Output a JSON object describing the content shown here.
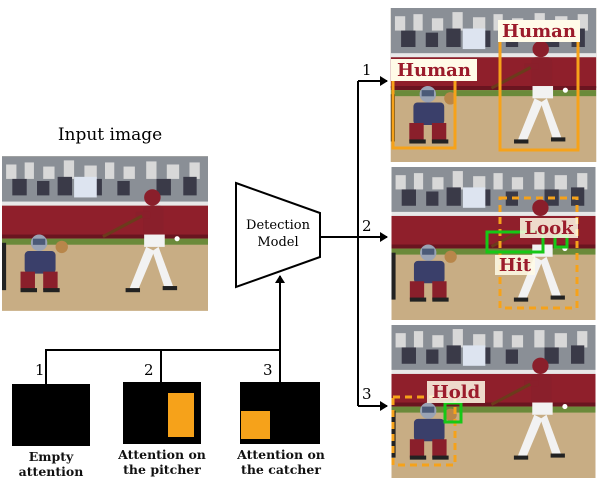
{
  "input": {
    "title": "Input image"
  },
  "model": {
    "line1": "Detection",
    "line2": "Model"
  },
  "branches": {
    "b1": "1",
    "b2": "2",
    "b3": "3"
  },
  "outputs": {
    "o1": {
      "labels": [
        "Human",
        "Human"
      ]
    },
    "o2": {
      "labels": [
        "Look",
        "Hit"
      ]
    },
    "o3": {
      "labels": [
        "Hold"
      ]
    }
  },
  "attention": {
    "a1": {
      "number": "1",
      "caption1": "Empty",
      "caption2": "attention"
    },
    "a2": {
      "number": "2",
      "caption1": "Attention on",
      "caption2": "the pitcher"
    },
    "a3": {
      "number": "3",
      "caption1": "Attention on",
      "caption2": "the catcher"
    }
  },
  "colors": {
    "orange": "#f6a21a",
    "green": "#16c816",
    "label_text": "#9b1b2b",
    "label_bg": "#fffbe8"
  }
}
